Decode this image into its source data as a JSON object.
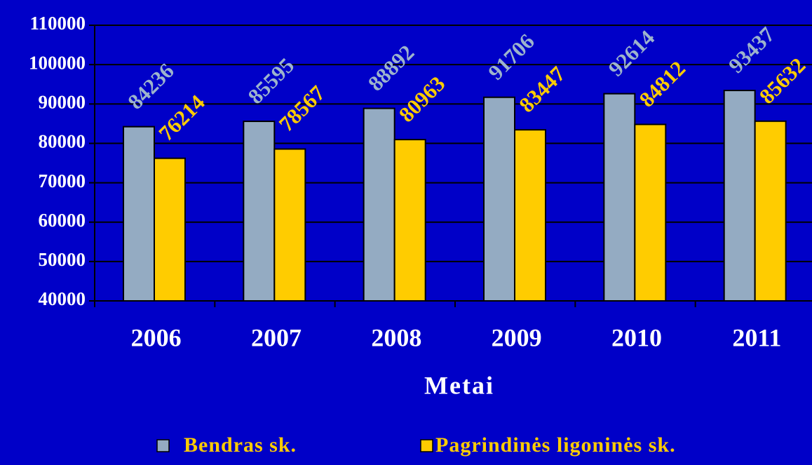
{
  "chart_data": {
    "type": "bar",
    "categories": [
      "2006",
      "2007",
      "2008",
      "2009",
      "2010",
      "2011"
    ],
    "series": [
      {
        "name": "Bendras sk.",
        "color": "#94abc2",
        "label_color": "#9db4cc",
        "values": [
          84236,
          85595,
          88892,
          91706,
          92614,
          93437
        ]
      },
      {
        "name": "Pagrindinės ligoninės sk.",
        "color": "#ffcc00",
        "label_color": "#ffcc00",
        "values": [
          76214,
          78567,
          80963,
          83447,
          84812,
          85632
        ]
      }
    ],
    "x_label": "Metai",
    "ylim": [
      40000,
      110000
    ],
    "yticks": [
      40000,
      50000,
      60000,
      70000,
      80000,
      90000,
      100000,
      110000
    ],
    "grid": true
  }
}
